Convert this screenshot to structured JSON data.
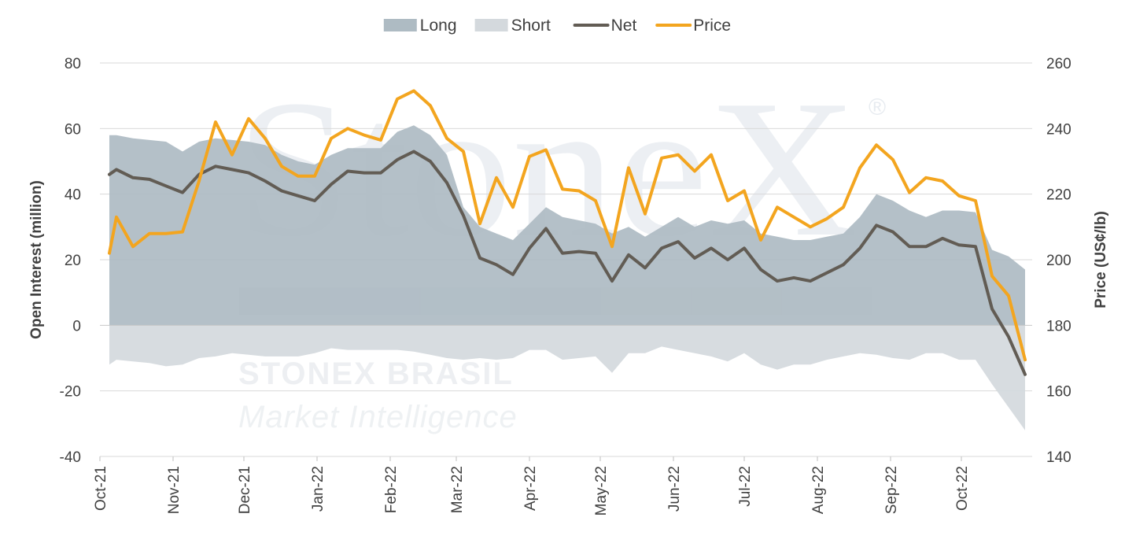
{
  "chart_data": {
    "type": "area",
    "x": [
      "2021-10-05",
      "2021-10-08",
      "2021-10-15",
      "2021-10-22",
      "2021-10-29",
      "2021-11-05",
      "2021-11-12",
      "2021-11-19",
      "2021-11-26",
      "2021-12-03",
      "2021-12-10",
      "2021-12-17",
      "2021-12-24",
      "2021-12-31",
      "2022-01-07",
      "2022-01-14",
      "2022-01-21",
      "2022-01-28",
      "2022-02-04",
      "2022-02-11",
      "2022-02-18",
      "2022-02-25",
      "2022-03-04",
      "2022-03-11",
      "2022-03-18",
      "2022-03-25",
      "2022-04-01",
      "2022-04-08",
      "2022-04-15",
      "2022-04-22",
      "2022-04-29",
      "2022-05-06",
      "2022-05-13",
      "2022-05-20",
      "2022-05-27",
      "2022-06-03",
      "2022-06-10",
      "2022-06-17",
      "2022-06-24",
      "2022-07-01",
      "2022-07-08",
      "2022-07-15",
      "2022-07-22",
      "2022-07-29",
      "2022-08-05",
      "2022-08-12",
      "2022-08-19",
      "2022-08-26",
      "2022-09-02",
      "2022-09-09",
      "2022-09-16",
      "2022-09-23",
      "2022-09-30",
      "2022-10-07",
      "2022-10-14",
      "2022-10-21",
      "2022-10-28"
    ],
    "x_ticks": [
      "Oct-21",
      "Nov-21",
      "Dec-21",
      "Jan-22",
      "Feb-22",
      "Mar-22",
      "Apr-22",
      "May-22",
      "Jun-22",
      "Jul-22",
      "Aug-22",
      "Sep-22",
      "Oct-22"
    ],
    "x_tick_dates": [
      "2021-10-01",
      "2021-11-01",
      "2021-12-01",
      "2022-01-01",
      "2022-02-01",
      "2022-03-01",
      "2022-04-01",
      "2022-05-01",
      "2022-06-01",
      "2022-07-01",
      "2022-08-01",
      "2022-09-01",
      "2022-10-01"
    ],
    "x_range": [
      "2021-10-01",
      "2022-10-31"
    ],
    "y_left": {
      "label": "Open Interest (million)",
      "range": [
        -40,
        80
      ],
      "ticks": [
        -40,
        -20,
        0,
        20,
        40,
        60,
        80
      ]
    },
    "y_right": {
      "label": "Price (US¢/lb)",
      "range": [
        140,
        260
      ],
      "ticks": [
        140,
        160,
        180,
        200,
        220,
        240,
        260
      ]
    },
    "grid": true,
    "legend_position": "top-center",
    "series": [
      {
        "name": "Long",
        "type": "area",
        "axis": "left",
        "color": "#aebbc3",
        "values": [
          58,
          58,
          57,
          56.5,
          56,
          53,
          56,
          57,
          56.5,
          56,
          55,
          52,
          50,
          49,
          52,
          54,
          54,
          54,
          59,
          61,
          58,
          52,
          36,
          30,
          28,
          26,
          31,
          36,
          33,
          32,
          31,
          28,
          30,
          27,
          30,
          33,
          30,
          32,
          31,
          32,
          28,
          27,
          26,
          26,
          27,
          28,
          33,
          40,
          38,
          35,
          33,
          35,
          35,
          34.5,
          23,
          21,
          17
        ]
      },
      {
        "name": "Short",
        "type": "area",
        "axis": "left",
        "color": "#d4d9dd",
        "values": [
          -12,
          -10.5,
          -11,
          -11.5,
          -12.5,
          -12,
          -10,
          -9.5,
          -8.5,
          -9,
          -9.5,
          -9.5,
          -9.5,
          -8.5,
          -7,
          -7.5,
          -7.5,
          -7.5,
          -7.5,
          -8,
          -9,
          -10,
          -10.5,
          -10,
          -10.5,
          -10,
          -7.5,
          -7.5,
          -10.5,
          -10,
          -9.5,
          -14.5,
          -8.5,
          -8.5,
          -6.5,
          -7.5,
          -8.5,
          -9.5,
          -11,
          -8.5,
          -12,
          -13.5,
          -12,
          -12,
          -10.5,
          -9.5,
          -8.5,
          -9,
          -10,
          -10.5,
          -8.5,
          -8.5,
          -10.5,
          -10.5,
          -18,
          -25,
          -32
        ]
      },
      {
        "name": "Net",
        "type": "line",
        "axis": "left",
        "color": "#625c54",
        "values": [
          46,
          47.5,
          45,
          44.5,
          42.5,
          40.5,
          46,
          48.5,
          47.5,
          46.5,
          44,
          41,
          39.5,
          38,
          43,
          47,
          46.5,
          46.5,
          50.5,
          53,
          50,
          43.5,
          33.5,
          20.5,
          18.5,
          15.5,
          23.5,
          29.5,
          22,
          22.5,
          22,
          13.5,
          21.5,
          17.5,
          23.5,
          25.5,
          20.5,
          23.5,
          20,
          23.5,
          17,
          13.5,
          14.5,
          13.5,
          16,
          18.5,
          23.5,
          30.5,
          28.5,
          24,
          24,
          26.5,
          24.5,
          24,
          5,
          -3.5,
          -15
        ]
      },
      {
        "name": "Price",
        "type": "line",
        "axis": "right",
        "color": "#f3a51f",
        "values": [
          202,
          213,
          204,
          208,
          208,
          208.5,
          224,
          242,
          232,
          243,
          237,
          228.5,
          225.5,
          225.5,
          237,
          240,
          238,
          236.5,
          249,
          251.5,
          247,
          237,
          233,
          211,
          225,
          216,
          231.5,
          233.5,
          221.5,
          221,
          218,
          204,
          228,
          214,
          231,
          232,
          227,
          232,
          218,
          221,
          206,
          216,
          213,
          210,
          212.5,
          216,
          228,
          235,
          230.5,
          220.5,
          225,
          224,
          219.5,
          218,
          195,
          189,
          169.5
        ]
      }
    ]
  },
  "legend": {
    "items": [
      {
        "label": "Long",
        "color": "#aebbc3",
        "kind": "area"
      },
      {
        "label": "Short",
        "color": "#d4d9dd",
        "kind": "area"
      },
      {
        "label": "Net",
        "color": "#625c54",
        "kind": "line"
      },
      {
        "label": "Price",
        "color": "#f3a51f",
        "kind": "line"
      }
    ]
  },
  "watermark": {
    "logo_text": "StoneX",
    "registered": "®",
    "brand": "STONEX BRASIL",
    "subtitle": "Market Intelligence",
    "palette": [
      "#c3ccd3",
      "#c8d1d8",
      "#cfd6dc",
      "#cdd4d3",
      "#dad9d2",
      "#e0d6d3",
      "#e3d8dc"
    ]
  }
}
